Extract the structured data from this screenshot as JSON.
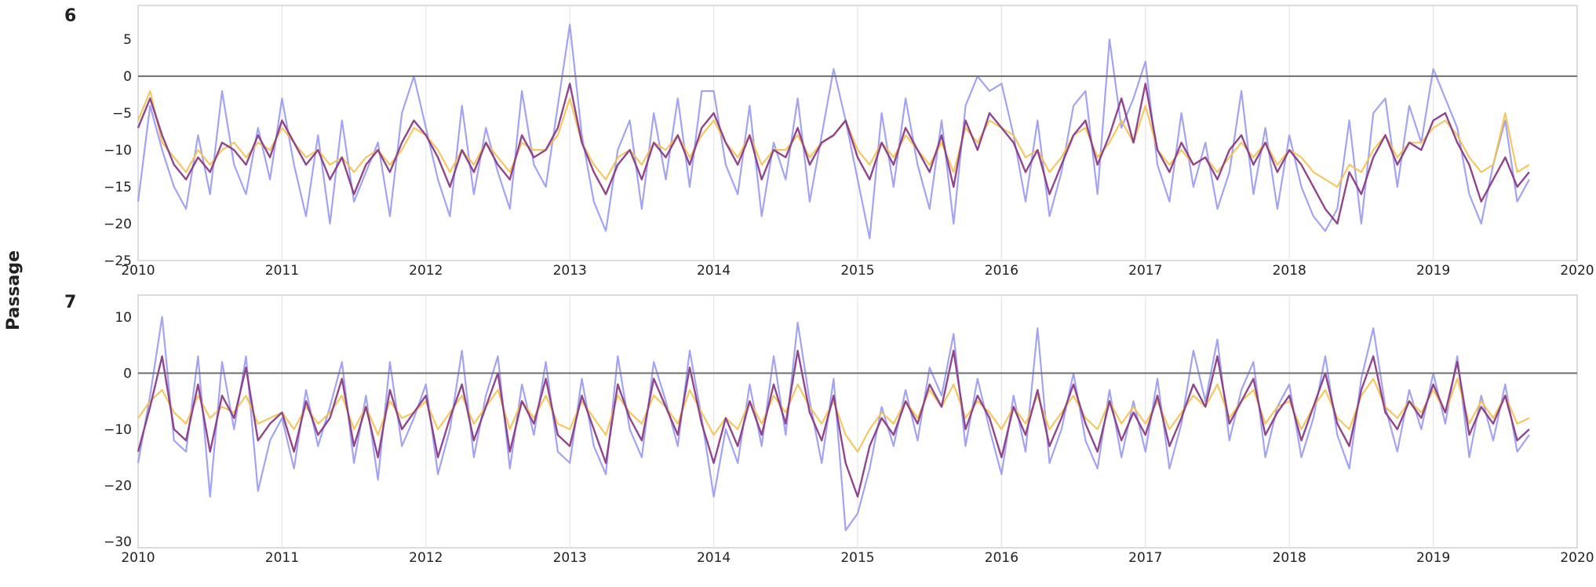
{
  "chart_data": {
    "type": "line",
    "ylabel": "Passage",
    "colors": {
      "blue": "#9e9ef2",
      "yellow": "#f4c24e",
      "purple": "#8a3b87",
      "zero_line": "#6e6e6e",
      "grid": "#e6e6e6"
    },
    "x_start": 2010,
    "x_step_months": 1,
    "xlim": [
      2010,
      2020
    ],
    "xticks": [
      "2010",
      "2011",
      "2012",
      "2013",
      "2014",
      "2015",
      "2016",
      "2017",
      "2018",
      "2019",
      "2020"
    ],
    "panels": [
      {
        "label": "6",
        "ylim": [
          -25,
          9.6
        ],
        "yticks": [
          5,
          0,
          -5,
          -10,
          -15,
          -20,
          -25
        ],
        "ytick_labels": [
          "5",
          "0",
          "−5",
          "−10",
          "−15",
          "−20",
          "−25"
        ],
        "series": [
          {
            "color": "blue",
            "values": [
              -17,
              -4,
              -10,
              -15,
              -18,
              -8,
              -16,
              -2,
              -12,
              -16,
              -7,
              -14,
              -3,
              -12,
              -19,
              -8,
              -20,
              -6,
              -17,
              -13,
              -9,
              -19,
              -5,
              0,
              -7,
              -14,
              -19,
              -4,
              -16,
              -7,
              -13,
              -18,
              -2,
              -12,
              -15,
              -4,
              7,
              -8,
              -17,
              -21,
              -10,
              -6,
              -18,
              -5,
              -14,
              -3,
              -15,
              -2,
              -2,
              -12,
              -16,
              -4,
              -19,
              -9,
              -14,
              -3,
              -17,
              -8,
              1,
              -6,
              -14,
              -22,
              -5,
              -15,
              -3,
              -12,
              -18,
              -6,
              -20,
              -4,
              0,
              -2,
              -1,
              -8,
              -17,
              -6,
              -19,
              -13,
              -4,
              -2,
              -16,
              5,
              -7,
              -3,
              2,
              -12,
              -17,
              -5,
              -15,
              -9,
              -18,
              -13,
              -2,
              -16,
              -7,
              -18,
              -8,
              -15,
              -19,
              -21,
              -18,
              -6,
              -20,
              -5,
              -3,
              -15,
              -4,
              -9,
              1,
              -3,
              -7,
              -16,
              -20,
              -12,
              -6,
              -17,
              -14
            ]
          },
          {
            "color": "yellow",
            "values": [
              -6,
              -2,
              -9,
              -11,
              -13,
              -10,
              -12,
              -10,
              -9,
              -11,
              -9,
              -10,
              -7,
              -9,
              -11,
              -10,
              -12,
              -11,
              -13,
              -11,
              -10,
              -12,
              -10,
              -7,
              -8,
              -10,
              -13,
              -10,
              -12,
              -9,
              -11,
              -13,
              -9,
              -10,
              -10,
              -8,
              -3,
              -9,
              -12,
              -14,
              -11,
              -10,
              -12,
              -9,
              -10,
              -8,
              -11,
              -8,
              -6,
              -9,
              -11,
              -8,
              -12,
              -10,
              -10,
              -8,
              -11,
              -9,
              -8,
              -6,
              -10,
              -12,
              -9,
              -11,
              -8,
              -10,
              -12,
              -9,
              -13,
              -7,
              -9,
              -6,
              -7,
              -8,
              -11,
              -10,
              -13,
              -11,
              -8,
              -7,
              -11,
              -9,
              -6,
              -9,
              -4,
              -10,
              -12,
              -10,
              -12,
              -11,
              -13,
              -11,
              -9,
              -11,
              -9,
              -12,
              -10,
              -11,
              -13,
              -14,
              -15,
              -12,
              -13,
              -10,
              -8,
              -11,
              -9,
              -9,
              -7,
              -6,
              -8,
              -11,
              -13,
              -12,
              -5,
              -13,
              -12
            ]
          },
          {
            "color": "purple",
            "values": [
              -7,
              -3,
              -8,
              -12,
              -14,
              -11,
              -13,
              -9,
              -10,
              -12,
              -8,
              -11,
              -6,
              -9,
              -12,
              -10,
              -14,
              -11,
              -16,
              -12,
              -10,
              -13,
              -9,
              -6,
              -8,
              -11,
              -15,
              -10,
              -13,
              -9,
              -12,
              -14,
              -8,
              -11,
              -10,
              -7,
              -1,
              -9,
              -13,
              -16,
              -12,
              -10,
              -14,
              -9,
              -11,
              -8,
              -12,
              -7,
              -5,
              -9,
              -12,
              -8,
              -14,
              -10,
              -11,
              -7,
              -12,
              -9,
              -8,
              -6,
              -11,
              -14,
              -9,
              -12,
              -7,
              -10,
              -13,
              -8,
              -15,
              -6,
              -10,
              -5,
              -7,
              -9,
              -13,
              -10,
              -16,
              -12,
              -8,
              -6,
              -12,
              -8,
              -3,
              -9,
              -1,
              -10,
              -13,
              -9,
              -12,
              -11,
              -14,
              -10,
              -8,
              -12,
              -9,
              -13,
              -10,
              -12,
              -15,
              -18,
              -20,
              -13,
              -16,
              -11,
              -8,
              -12,
              -9,
              -10,
              -6,
              -5,
              -9,
              -12,
              -17,
              -14,
              -11,
              -15,
              -13
            ]
          }
        ]
      },
      {
        "label": "7",
        "ylim": [
          -31.1,
          13.9
        ],
        "yticks": [
          10,
          0,
          -10,
          -20,
          -30
        ],
        "ytick_labels": [
          "10",
          "0",
          "−10",
          "−20",
          "−30"
        ],
        "series": [
          {
            "color": "blue",
            "values": [
              -16,
              -4,
              10,
              -12,
              -14,
              3,
              -22,
              2,
              -10,
              3,
              -21,
              -12,
              -8,
              -17,
              -3,
              -13,
              -6,
              2,
              -16,
              -4,
              -19,
              2,
              -13,
              -8,
              -2,
              -18,
              -10,
              4,
              -15,
              -4,
              3,
              -17,
              -2,
              -11,
              2,
              -14,
              -16,
              -1,
              -13,
              -18,
              3,
              -10,
              -15,
              2,
              -5,
              -13,
              4,
              -8,
              -22,
              -10,
              -16,
              -2,
              -13,
              3,
              -11,
              9,
              -5,
              -16,
              -1,
              -28,
              -25,
              -17,
              -6,
              -13,
              -3,
              -12,
              1,
              -4,
              7,
              -13,
              -1,
              -10,
              -18,
              -4,
              -14,
              8,
              -16,
              -10,
              0,
              -12,
              -17,
              -3,
              -15,
              -5,
              -14,
              -1,
              -17,
              -9,
              4,
              -5,
              6,
              -12,
              -3,
              2,
              -15,
              -6,
              -2,
              -15,
              -8,
              3,
              -11,
              -17,
              -1,
              8,
              -6,
              -14,
              -3,
              -10,
              0,
              -9,
              3,
              -15,
              -4,
              -12,
              -2,
              -14,
              -11
            ]
          },
          {
            "color": "yellow",
            "values": [
              -8,
              -5,
              -3,
              -7,
              -9,
              -4,
              -8,
              -6,
              -7,
              -4,
              -9,
              -8,
              -7,
              -10,
              -6,
              -9,
              -7,
              -4,
              -10,
              -6,
              -11,
              -5,
              -8,
              -7,
              -5,
              -10,
              -7,
              -4,
              -9,
              -6,
              -3,
              -10,
              -5,
              -8,
              -4,
              -9,
              -10,
              -5,
              -8,
              -11,
              -4,
              -7,
              -9,
              -4,
              -6,
              -9,
              -3,
              -7,
              -11,
              -8,
              -10,
              -5,
              -9,
              -4,
              -7,
              -2,
              -6,
              -9,
              -5,
              -11,
              -14,
              -10,
              -7,
              -9,
              -5,
              -8,
              -3,
              -6,
              -2,
              -8,
              -5,
              -7,
              -10,
              -6,
              -9,
              -4,
              -10,
              -7,
              -4,
              -8,
              -10,
              -5,
              -9,
              -6,
              -9,
              -5,
              -10,
              -7,
              -4,
              -6,
              -2,
              -8,
              -5,
              -3,
              -9,
              -6,
              -5,
              -10,
              -6,
              -3,
              -8,
              -10,
              -4,
              -1,
              -6,
              -8,
              -5,
              -7,
              -3,
              -7,
              -1,
              -9,
              -5,
              -8,
              -4,
              -9,
              -8
            ]
          },
          {
            "color": "purple",
            "values": [
              -14,
              -6,
              3,
              -10,
              -12,
              -2,
              -14,
              -4,
              -8,
              1,
              -12,
              -9,
              -7,
              -14,
              -5,
              -11,
              -8,
              -1,
              -13,
              -6,
              -15,
              -3,
              -10,
              -7,
              -4,
              -15,
              -8,
              -2,
              -12,
              -6,
              0,
              -14,
              -5,
              -9,
              -1,
              -11,
              -13,
              -4,
              -10,
              -16,
              -2,
              -8,
              -12,
              -1,
              -6,
              -11,
              1,
              -9,
              -16,
              -8,
              -13,
              -5,
              -11,
              -2,
              -9,
              4,
              -7,
              -12,
              -4,
              -16,
              -22,
              -13,
              -8,
              -11,
              -5,
              -9,
              -2,
              -6,
              4,
              -10,
              -4,
              -8,
              -15,
              -6,
              -11,
              -3,
              -13,
              -8,
              -2,
              -9,
              -14,
              -5,
              -12,
              -7,
              -11,
              -4,
              -13,
              -8,
              -2,
              -6,
              3,
              -9,
              -5,
              -1,
              -11,
              -7,
              -4,
              -12,
              -6,
              0,
              -9,
              -13,
              -3,
              3,
              -7,
              -10,
              -5,
              -8,
              -2,
              -7,
              2,
              -11,
              -6,
              -9,
              -4,
              -12,
              -10
            ]
          }
        ]
      }
    ]
  }
}
